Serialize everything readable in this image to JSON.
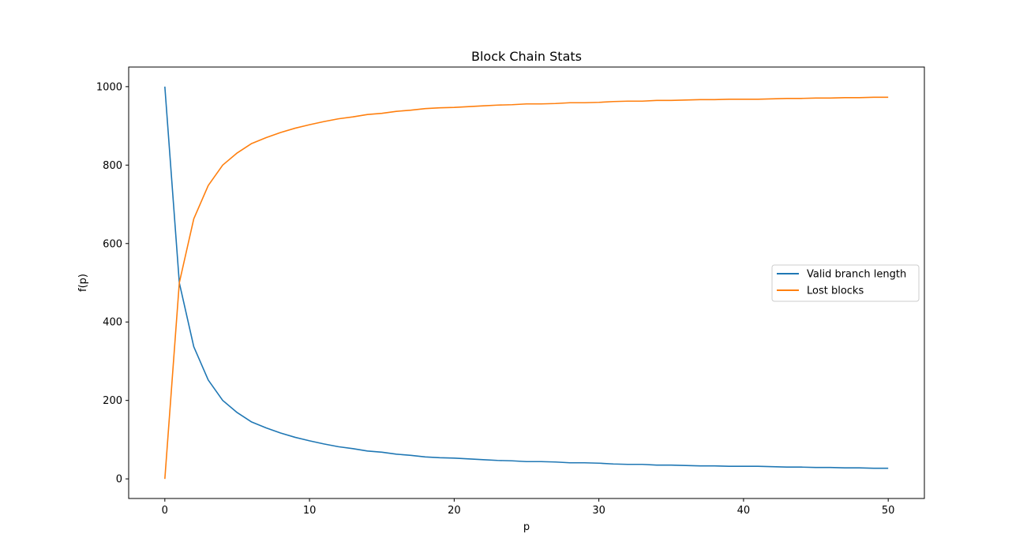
{
  "chart_data": {
    "type": "line",
    "title": "Block Chain Stats",
    "xlabel": "p",
    "ylabel": "f(p)",
    "xlim": [
      -2.5,
      52.5
    ],
    "ylim": [
      -50,
      1050
    ],
    "xticks": [
      0,
      10,
      20,
      30,
      40,
      50
    ],
    "yticks": [
      0,
      200,
      400,
      600,
      800,
      1000
    ],
    "grid": false,
    "legend_position": "center-right",
    "x": [
      0,
      1,
      2,
      3,
      4,
      5,
      6,
      7,
      8,
      9,
      10,
      11,
      12,
      13,
      14,
      15,
      16,
      17,
      18,
      19,
      20,
      21,
      22,
      23,
      24,
      25,
      26,
      27,
      28,
      29,
      30,
      31,
      32,
      33,
      34,
      35,
      36,
      37,
      38,
      39,
      40,
      41,
      42,
      43,
      44,
      45,
      46,
      47,
      48,
      49,
      50
    ],
    "series": [
      {
        "name": "Valid branch length",
        "color": "#1f77b4",
        "values": [
          1000,
          500,
          337,
          252,
          200,
          169,
          145,
          130,
          117,
          106,
          97,
          89,
          82,
          77,
          71,
          68,
          63,
          60,
          56,
          54,
          53,
          51,
          49,
          47,
          46,
          44,
          44,
          43,
          41,
          41,
          40,
          38,
          37,
          37,
          35,
          35,
          34,
          33,
          33,
          32,
          32,
          32,
          31,
          30,
          30,
          29,
          29,
          28,
          28,
          27,
          27
        ]
      },
      {
        "name": "Lost blocks",
        "color": "#ff7f0e",
        "values": [
          0,
          500,
          663,
          748,
          800,
          831,
          855,
          870,
          883,
          894,
          903,
          911,
          918,
          923,
          929,
          932,
          937,
          940,
          944,
          946,
          947,
          949,
          951,
          953,
          954,
          956,
          956,
          957,
          959,
          959,
          960,
          962,
          963,
          963,
          965,
          965,
          966,
          967,
          967,
          968,
          968,
          968,
          969,
          970,
          970,
          971,
          971,
          972,
          972,
          973,
          973
        ]
      }
    ]
  }
}
